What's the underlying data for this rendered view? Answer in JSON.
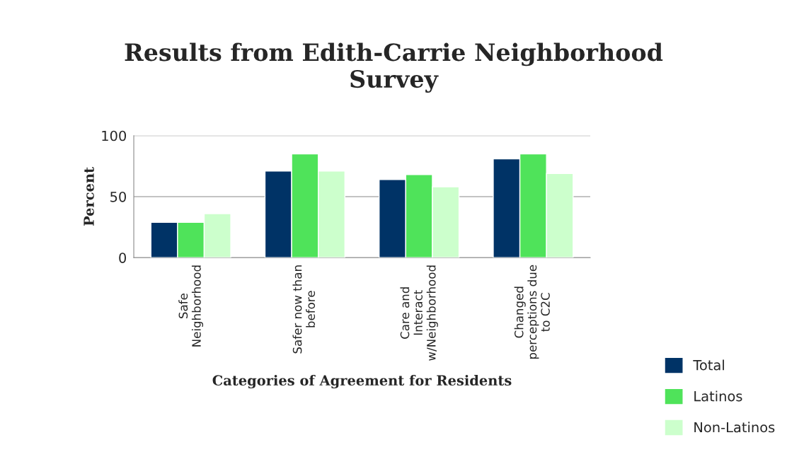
{
  "chart_data": {
    "type": "bar",
    "title": "Results from Edith-Carrie Neighborhood\nSurvey",
    "xlabel": "Categories of Agreement for Residents",
    "ylabel": "Percent",
    "categories": [
      "Safe\nNeighborhood",
      "Safer now than\nbefore",
      "Care and\nInteract\nw/Neighborhood",
      "Changed\nperceptions due\nto C2C"
    ],
    "series": [
      {
        "name": "Total",
        "color": "#003366",
        "values": [
          29,
          71,
          64,
          81
        ]
      },
      {
        "name": "Latinos",
        "color": "#4fe35a",
        "values": [
          29,
          85,
          68,
          85
        ]
      },
      {
        "name": "Non-Latinos",
        "color": "#ccffcc",
        "values": [
          36,
          71,
          58,
          69
        ]
      }
    ],
    "ylim": [
      0,
      100
    ],
    "yticks": [
      0,
      50,
      100
    ],
    "grid": "y",
    "legend": "bottom right"
  }
}
